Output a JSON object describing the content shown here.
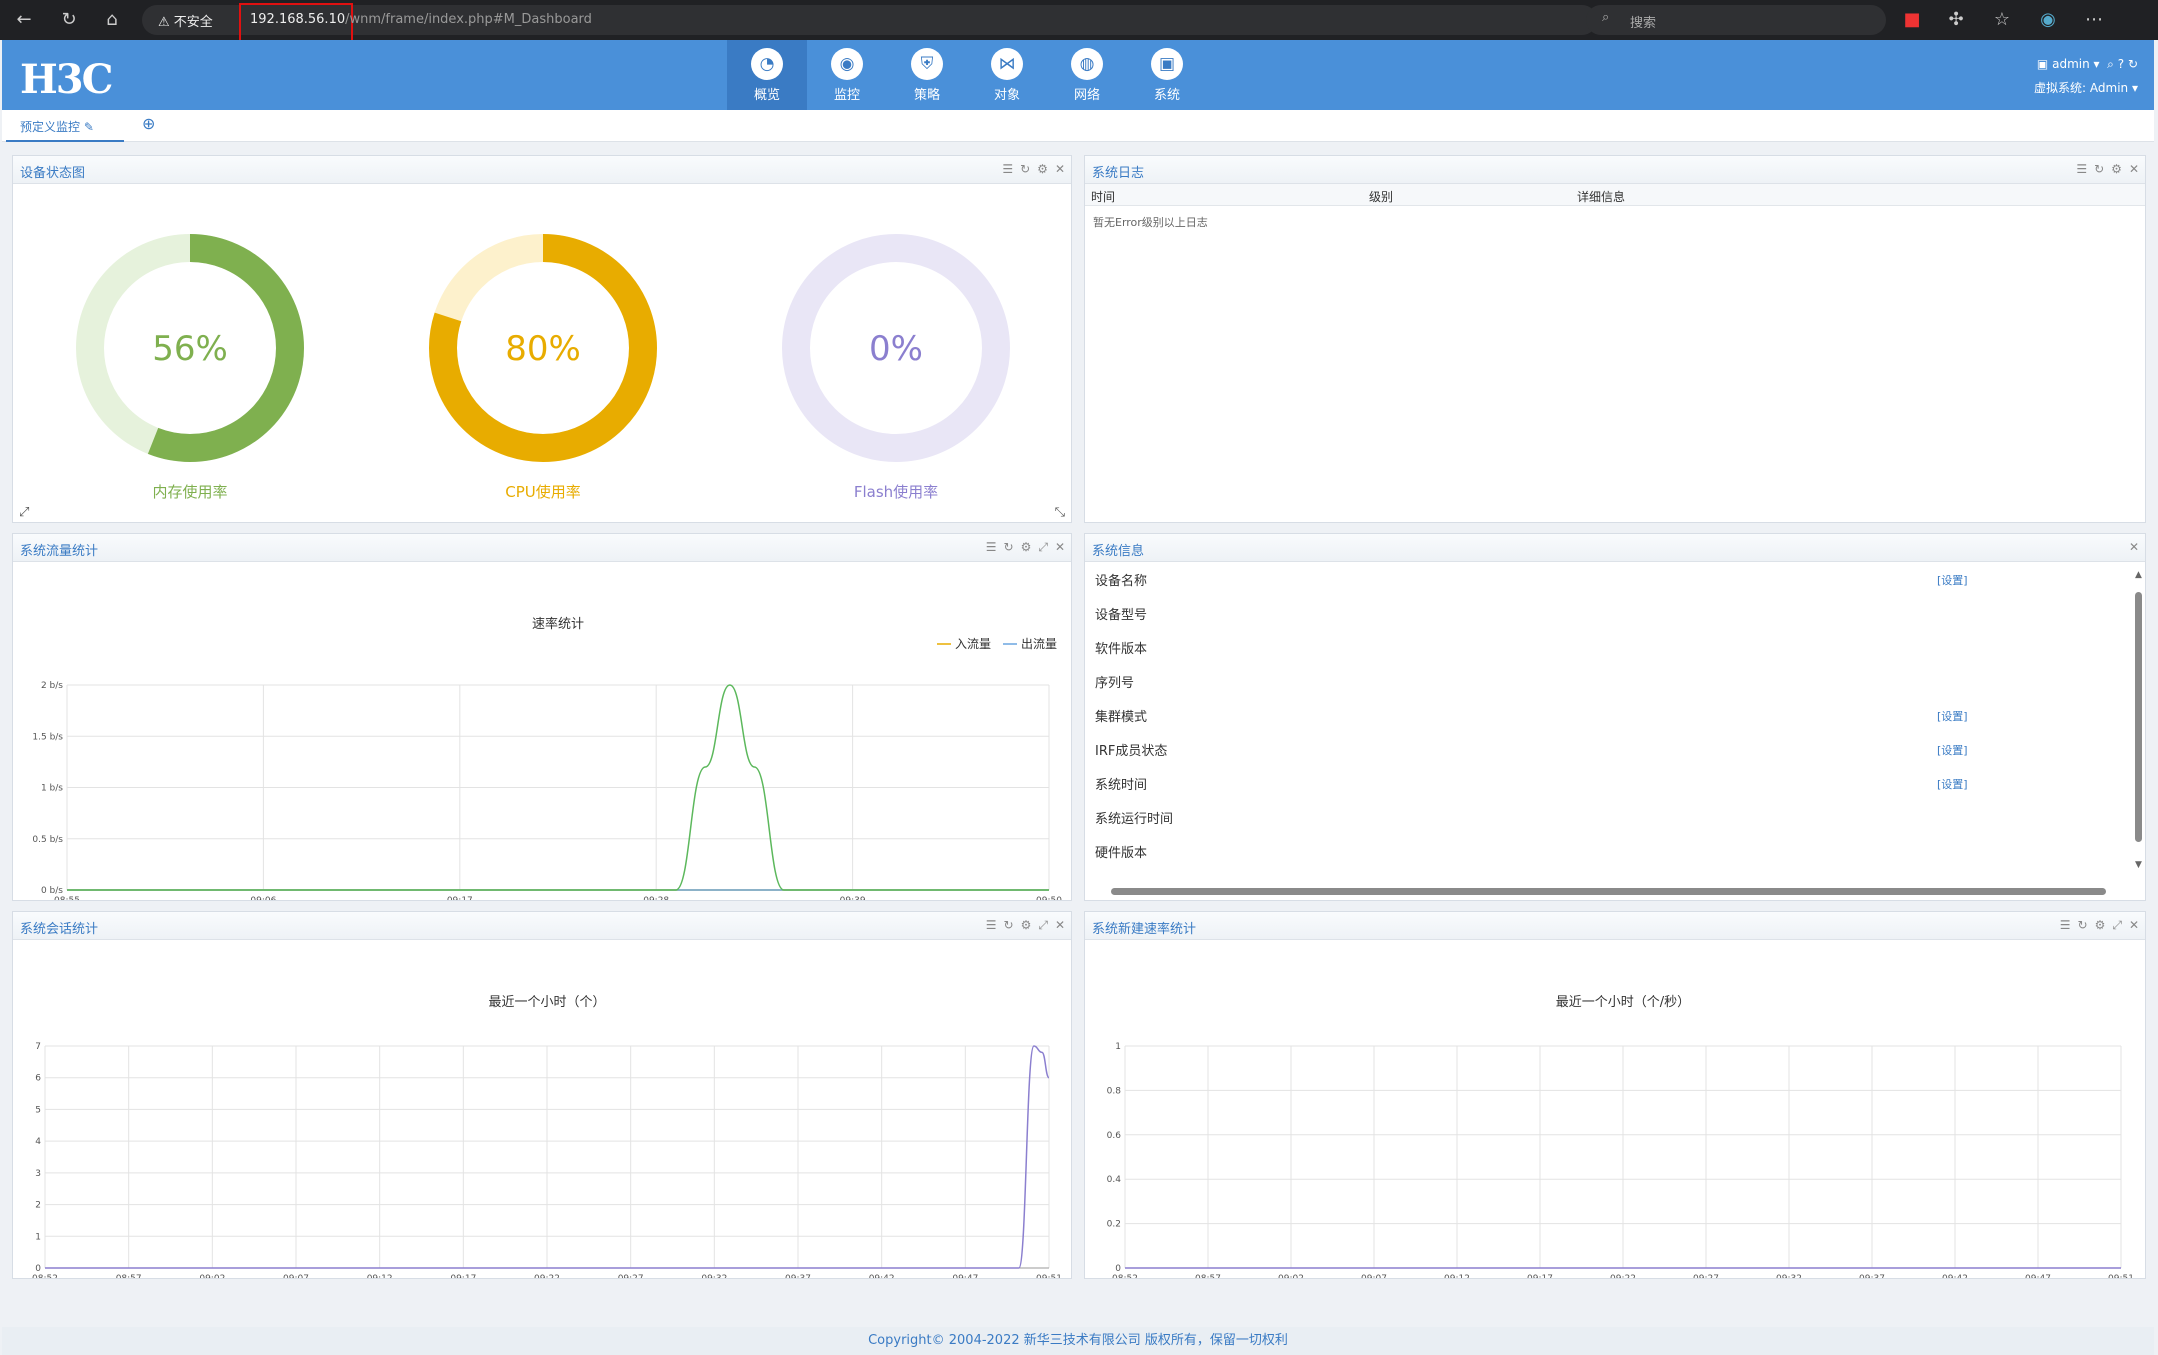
{
  "browser": {
    "insecure": "不安全",
    "url_host": "192.168.56.10",
    "url_path": "/wnm/frame/index.php#M_Dashboard",
    "search_placeholder": "搜索"
  },
  "header": {
    "logo": "H3C",
    "nav": [
      {
        "label": "概览",
        "icon": "dashboard-icon"
      },
      {
        "label": "监控",
        "icon": "monitor-icon"
      },
      {
        "label": "策略",
        "icon": "shield-icon"
      },
      {
        "label": "对象",
        "icon": "share-icon"
      },
      {
        "label": "网络",
        "icon": "globe-icon"
      },
      {
        "label": "系统",
        "icon": "system-icon"
      }
    ],
    "user": "admin",
    "vsys_label": "虚拟系统:",
    "vsys": "Admin"
  },
  "tabs": {
    "tab1": "预定义监控"
  },
  "status_panel": {
    "title": "设备状态图",
    "gauges": [
      {
        "value": "56%",
        "level": 0.56,
        "label": "内存使用率",
        "color": "#7fb04f",
        "track": "#e6f2dc"
      },
      {
        "value": "80%",
        "level": 0.8,
        "label": "CPU使用率",
        "color": "#e8ac00",
        "track": "#fdf1cc"
      },
      {
        "value": "0%",
        "level": 0.0,
        "label": "Flash使用率",
        "color": "#8b7fcf",
        "track": "#e9e6f6"
      }
    ]
  },
  "log_panel": {
    "title": "系统日志",
    "cols": [
      "时间",
      "级别",
      "详细信息"
    ],
    "empty": "暂无Error级别以上日志"
  },
  "info_panel": {
    "title": "系统信息",
    "rows": [
      {
        "label": "设备名称",
        "action": "[设置]"
      },
      {
        "label": "设备型号",
        "action": ""
      },
      {
        "label": "软件版本",
        "action": ""
      },
      {
        "label": "序列号",
        "action": ""
      },
      {
        "label": "集群模式",
        "action": "[设置]"
      },
      {
        "label": "IRF成员状态",
        "action": "[设置]"
      },
      {
        "label": "系统时间",
        "action": "[设置]"
      },
      {
        "label": "系统运行时间",
        "action": ""
      },
      {
        "label": "硬件版本",
        "action": ""
      }
    ]
  },
  "traffic_panel": {
    "title": "系统流量统计"
  },
  "session_panel": {
    "title": "系统会话统计"
  },
  "newrate_panel": {
    "title": "系统新建速率统计"
  },
  "chart_data": [
    {
      "type": "line",
      "title": "速率统计",
      "x": [
        "08:55",
        "09:06",
        "09:17",
        "09:28",
        "09:39",
        "09:50"
      ],
      "yticks": [
        "0 b/s",
        "0.5 b/s",
        "1 b/s",
        "1.5 b/s",
        "2 b/s"
      ],
      "ylim": [
        0,
        2
      ],
      "series": [
        {
          "name": "入流量",
          "color": "#e8ac00",
          "values": [
            0,
            0,
            0,
            0,
            0,
            0
          ]
        },
        {
          "name": "出流量",
          "color": "#6aa6e0",
          "values": [
            0,
            0,
            0,
            0,
            0,
            0
          ]
        },
        {
          "name": "",
          "color": "#5cb85c",
          "points": [
            [
              0,
              0
            ],
            [
              0.62,
              0
            ],
            [
              0.65,
              1.2
            ],
            [
              0.675,
              2
            ],
            [
              0.7,
              1.2
            ],
            [
              0.73,
              0
            ],
            [
              1,
              0
            ]
          ]
        }
      ]
    },
    {
      "type": "line",
      "title": "最近一个小时（个）",
      "x": [
        "08:52",
        "08:57",
        "09:02",
        "09:07",
        "09:12",
        "09:17",
        "09:22",
        "09:27",
        "09:32",
        "09:37",
        "09:42",
        "09:47",
        "09:51"
      ],
      "yticks": [
        "0",
        "1",
        "2",
        "3",
        "4",
        "5",
        "6",
        "7"
      ],
      "ylim": [
        0,
        7
      ],
      "series": [
        {
          "name": "",
          "color": "#8b7fcf",
          "points": [
            [
              0,
              0
            ],
            [
              0.97,
              0
            ],
            [
              0.985,
              7
            ],
            [
              0.993,
              6.8
            ],
            [
              1,
              6
            ]
          ]
        }
      ]
    },
    {
      "type": "line",
      "title": "最近一个小时（个/秒）",
      "x": [
        "08:52",
        "08:57",
        "09:02",
        "09:07",
        "09:12",
        "09:17",
        "09:22",
        "09:27",
        "09:32",
        "09:37",
        "09:42",
        "09:47",
        "09:51"
      ],
      "yticks": [
        "0",
        "0.2",
        "0.4",
        "0.6",
        "0.8",
        "1"
      ],
      "ylim": [
        0,
        1
      ],
      "series": [
        {
          "name": "",
          "color": "#8b7fcf",
          "points": [
            [
              0,
              0
            ],
            [
              1,
              0
            ]
          ]
        }
      ]
    }
  ],
  "footer": "Copyright© 2004-2022 新华三技术有限公司 版权所有，保留一切权利"
}
